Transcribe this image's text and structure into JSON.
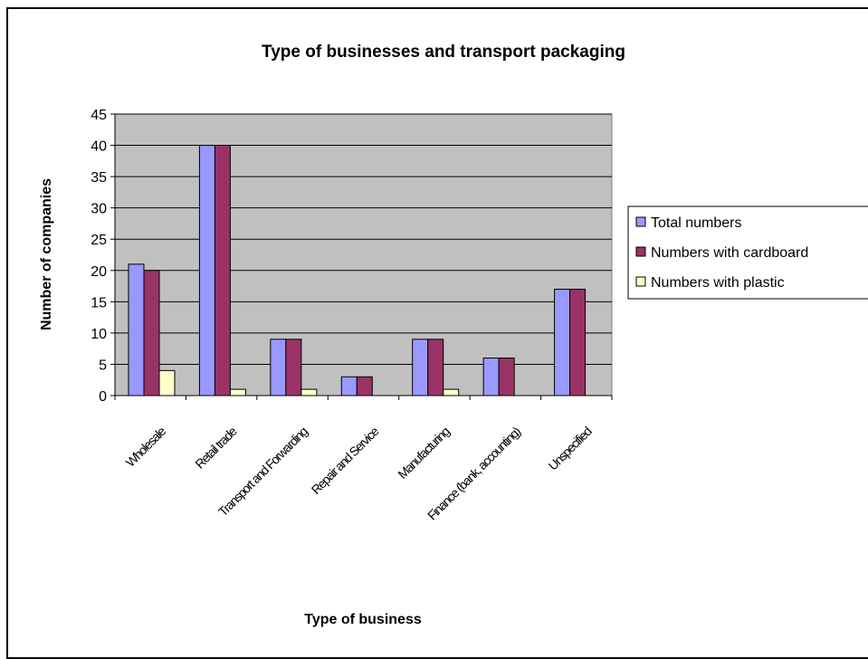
{
  "chart_data": {
    "type": "bar",
    "title": "Type of businesses and transport packaging",
    "xlabel": "Type of business",
    "ylabel": "Number of companies",
    "categories": [
      "Wholesale",
      "Retail trade",
      "Transport and Forwarding",
      "Repair and Service",
      "Manufacturing",
      "Finance (bank, accounting)",
      "Unspecified"
    ],
    "series": [
      {
        "name": "Total numbers",
        "color": "#9999ff",
        "values": [
          21,
          40,
          9,
          3,
          9,
          6,
          17
        ]
      },
      {
        "name": "Numbers with cardboard",
        "color": "#993366",
        "values": [
          20,
          40,
          9,
          3,
          9,
          6,
          17
        ]
      },
      {
        "name": "Numbers with plastic",
        "color": "#ffffcc",
        "values": [
          4,
          1,
          1,
          0,
          1,
          0,
          0
        ]
      }
    ],
    "ylim": [
      0,
      45
    ],
    "yticks": [
      0,
      5,
      10,
      15,
      20,
      25,
      30,
      35,
      40,
      45
    ],
    "plot_background": "#c0c0c0",
    "grid": true,
    "legend_position": "right"
  }
}
